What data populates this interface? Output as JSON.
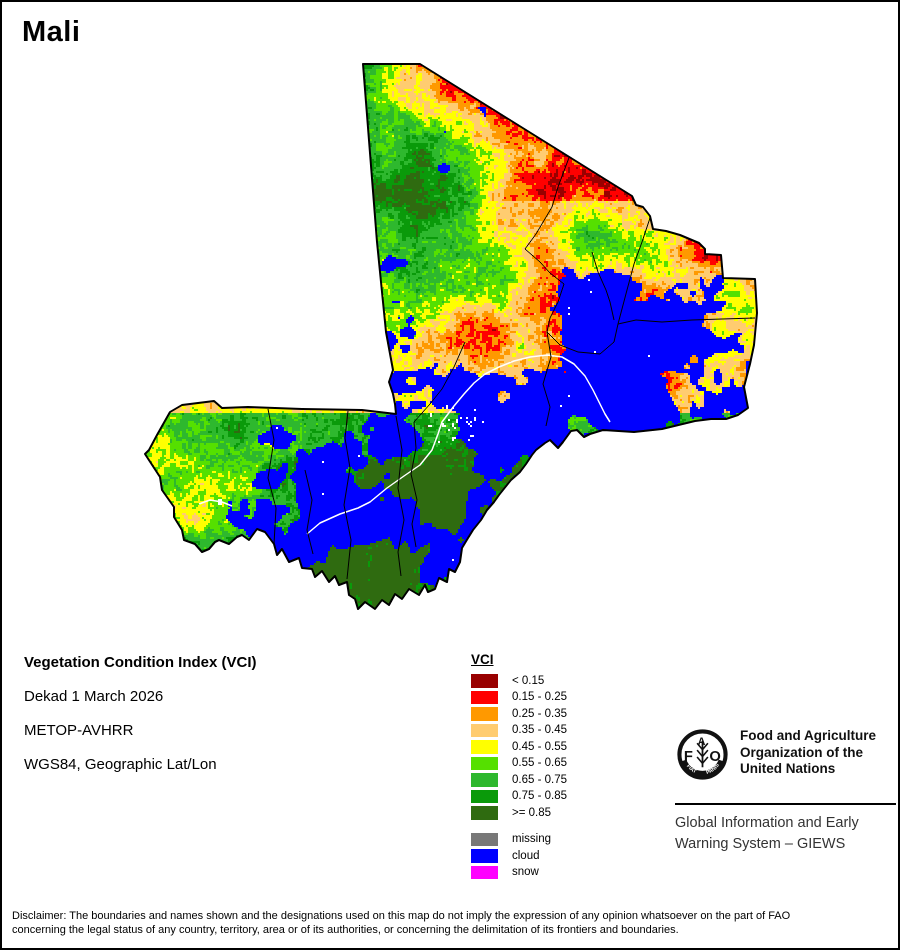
{
  "title": "Mali",
  "info": {
    "product": "Vegetation Condition Index (VCI)",
    "dekad": "Dekad 1 March 2026",
    "sensor": "METOP-AVHRR",
    "projection": "WGS84, Geographic Lat/Lon"
  },
  "legend": {
    "heading": "VCI",
    "classes": [
      {
        "label": "< 0.15",
        "color": "#990000"
      },
      {
        "label": "0.15 - 0.25",
        "color": "#FF0000"
      },
      {
        "label": "0.25 - 0.35",
        "color": "#FF9900"
      },
      {
        "label": "0.35 - 0.45",
        "color": "#FFCC70"
      },
      {
        "label": "0.45 - 0.55",
        "color": "#FFFF00"
      },
      {
        "label": "0.55 - 0.65",
        "color": "#55E000"
      },
      {
        "label": "0.65 - 0.75",
        "color": "#2EB82E"
      },
      {
        "label": "0.75 - 0.85",
        "color": "#0A9A0A"
      },
      {
        "label": ">= 0.85",
        "color": "#2F6B10"
      }
    ],
    "extra": [
      {
        "label": "missing",
        "color": "#787878"
      },
      {
        "label": "cloud",
        "color": "#0000FF"
      },
      {
        "label": "snow",
        "color": "#FF00FF"
      }
    ]
  },
  "org": {
    "letters": [
      "F",
      "A",
      "O"
    ],
    "motto": [
      "FIAT",
      "PANIS"
    ],
    "name_lines": [
      "Food and Agriculture",
      "Organization of the",
      "United Nations"
    ],
    "giews_lines": [
      "Global Information and Early",
      "Warning System – GIEWS"
    ]
  },
  "disclaimer": {
    "line1": "Disclaimer: The boundaries and names shown and the designations used on this map do not imply the expression of any opinion whatsoever on the part of FAO",
    "line2": "concerning the legal status of any country, territory, area or of its authorities, or concerning the delimitation of its frontiers and boundaries."
  }
}
